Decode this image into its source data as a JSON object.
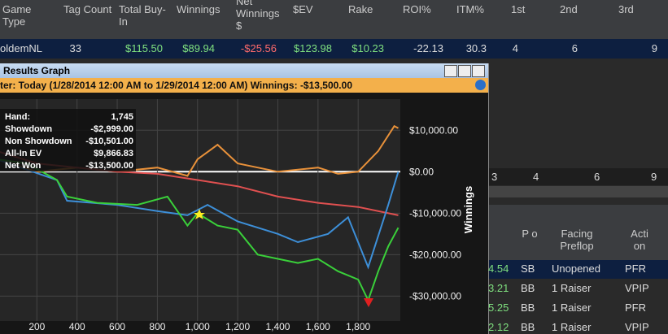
{
  "top_table": {
    "headers": [
      "Game Type",
      "Tag Count",
      "Total Buy-In",
      "Winnings",
      "Net Winnings $",
      "$EV",
      "Rake",
      "ROI%",
      "ITM%",
      "1st",
      "2nd",
      "3rd"
    ],
    "row": [
      "oldemNL",
      "33",
      "$115.50",
      "$89.94",
      "-$25.56",
      "$123.98",
      "$10.23",
      "-22.13",
      "30.3",
      "4",
      "6",
      "9"
    ]
  },
  "window": {
    "title": "Results Graph",
    "filter": "ter: Today (1/28/2014 12:00 AM to 1/29/2014 12:00 AM)",
    "winnings_label": "Winnings:",
    "winnings": "-$13,500.00",
    "info": [
      [
        "Hand:",
        "1,745"
      ],
      [
        "Showdown",
        "-$2,999.00"
      ],
      [
        "Non Showdown",
        "-$10,501.00"
      ],
      [
        "All-In EV",
        "$9,866.83"
      ],
      [
        "Net Won",
        "-$13,500.00"
      ]
    ]
  },
  "chart_data": {
    "type": "line",
    "y_label": "Winnings",
    "xlim": [
      0,
      2010
    ],
    "ylim": [
      -36000,
      17500
    ],
    "xticks": [
      200,
      400,
      600,
      800,
      {
        "value": 1000,
        "label": "1,000"
      },
      {
        "value": 1200,
        "label": "1,200"
      },
      {
        "value": 1400,
        "label": "1,400"
      },
      {
        "value": 1600,
        "label": "1,600"
      },
      {
        "value": 1800,
        "label": "1,800"
      }
    ],
    "yticks": [
      {
        "value": 10000,
        "label": "$10,000.00"
      },
      {
        "value": 0,
        "label": "$0.00"
      },
      {
        "value": -10000,
        "label": "-$10,000.00"
      },
      {
        "value": -20000,
        "label": "-$20,000.00"
      },
      {
        "value": -30000,
        "label": "-$30,000.00"
      }
    ],
    "grid": true,
    "series": [
      {
        "color": "#e8913a",
        "x": [
          0,
          200,
          400,
          600,
          800,
          950,
          1000,
          1100,
          1200,
          1400,
          1600,
          1700,
          1800,
          1900,
          1980,
          2000
        ],
        "values": [
          3000,
          0,
          1000,
          0,
          1000,
          -1000,
          3000,
          6500,
          2000,
          0,
          1000,
          -500,
          0,
          5000,
          11000,
          10500
        ]
      },
      {
        "color": "#e05050",
        "x": [
          0,
          200,
          400,
          600,
          800,
          1000,
          1200,
          1400,
          1600,
          1800,
          2000
        ],
        "values": [
          5000,
          2000,
          1000,
          0,
          -500,
          -2000,
          -3500,
          -6000,
          -7500,
          -8500,
          -10500
        ]
      },
      {
        "color": "#3d8fd8",
        "x": [
          0,
          300,
          350,
          600,
          800,
          950,
          1050,
          1200,
          1400,
          1500,
          1650,
          1750,
          1850,
          1950,
          2000
        ],
        "values": [
          3000,
          -2000,
          -7000,
          -8000,
          -9500,
          -10500,
          -8000,
          -12000,
          -15000,
          -17000,
          -15000,
          -11000,
          -23000,
          -8000,
          0
        ]
      },
      {
        "color": "#3ad03a",
        "x": [
          0,
          150,
          300,
          350,
          500,
          700,
          850,
          950,
          1000,
          1100,
          1200,
          1300,
          1400,
          1500,
          1600,
          1700,
          1800,
          1850,
          1900,
          1950,
          2000
        ],
        "values": [
          3000,
          2000,
          -2000,
          -6000,
          -7500,
          -8000,
          -6000,
          -13000,
          -10000,
          -13000,
          -14000,
          -20000,
          -21000,
          -22000,
          -21000,
          -24000,
          -26000,
          -31000,
          -24000,
          -18000,
          -13500
        ]
      }
    ]
  },
  "right_panel": {
    "summary_row": [
      "3",
      "4",
      "6",
      "9"
    ],
    "headers": [
      "P o",
      "Facing Preflop",
      "Acti on"
    ],
    "rows": [
      [
        "4.54",
        "SB",
        "Unopened",
        "PFR"
      ],
      [
        "3.21",
        "BB",
        "1 Raiser",
        "VPIP"
      ],
      [
        "5.25",
        "BB",
        "1 Raiser",
        "PFR"
      ],
      [
        "2.12",
        "BB",
        "1 Raiser",
        "VPIP"
      ]
    ]
  }
}
